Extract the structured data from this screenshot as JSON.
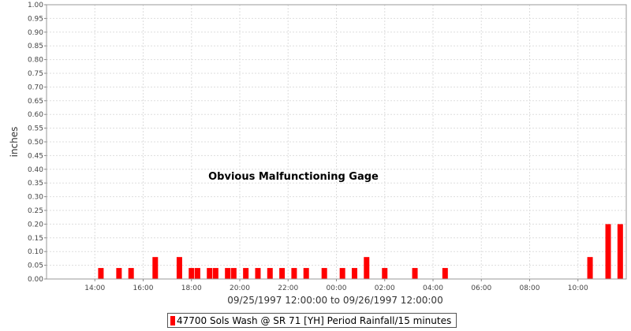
{
  "chart_data": {
    "type": "bar",
    "ylabel": "inches",
    "xlabel": "09/25/1997 12:00:00 to 09/26/1997 12:00:00",
    "annotation": "Obvious Malfunctioning Gage",
    "x_unit": "hours since 09/25/1997 12:00",
    "xlim": [
      0,
      24
    ],
    "ylim": [
      0,
      1.0
    ],
    "grid": true,
    "bar_color": "#ff0000",
    "x_ticks": [
      "14:00",
      "16:00",
      "18:00",
      "20:00",
      "22:00",
      "00:00",
      "02:00",
      "04:00",
      "06:00",
      "08:00",
      "10:00"
    ],
    "y_ticks": [
      "0.00",
      "0.05",
      "0.10",
      "0.15",
      "0.20",
      "0.25",
      "0.30",
      "0.35",
      "0.40",
      "0.45",
      "0.50",
      "0.55",
      "0.60",
      "0.65",
      "0.70",
      "0.75",
      "0.80",
      "0.85",
      "0.90",
      "0.95",
      "1.00"
    ],
    "series": [
      {
        "name": "47700 Sols Wash @ SR 71 [YH] Period Rainfall/15 minutes",
        "points": [
          {
            "t": "14:15",
            "value": 0.04
          },
          {
            "t": "15:00",
            "value": 0.04
          },
          {
            "t": "15:30",
            "value": 0.04
          },
          {
            "t": "16:30",
            "value": 0.08
          },
          {
            "t": "17:30",
            "value": 0.08
          },
          {
            "t": "18:00",
            "value": 0.04
          },
          {
            "t": "18:15",
            "value": 0.04
          },
          {
            "t": "18:45",
            "value": 0.04
          },
          {
            "t": "19:00",
            "value": 0.04
          },
          {
            "t": "19:30",
            "value": 0.04
          },
          {
            "t": "19:45",
            "value": 0.04
          },
          {
            "t": "20:15",
            "value": 0.04
          },
          {
            "t": "20:45",
            "value": 0.04
          },
          {
            "t": "21:15",
            "value": 0.04
          },
          {
            "t": "21:45",
            "value": 0.04
          },
          {
            "t": "22:15",
            "value": 0.04
          },
          {
            "t": "22:45",
            "value": 0.04
          },
          {
            "t": "23:30",
            "value": 0.04
          },
          {
            "t": "00:15",
            "value": 0.04
          },
          {
            "t": "00:45",
            "value": 0.04
          },
          {
            "t": "01:15",
            "value": 0.08
          },
          {
            "t": "02:00",
            "value": 0.04
          },
          {
            "t": "03:15",
            "value": 0.04
          },
          {
            "t": "04:30",
            "value": 0.04
          },
          {
            "t": "10:30",
            "value": 0.08
          },
          {
            "t": "11:15",
            "value": 0.2
          },
          {
            "t": "11:45",
            "value": 0.2
          }
        ]
      }
    ]
  }
}
